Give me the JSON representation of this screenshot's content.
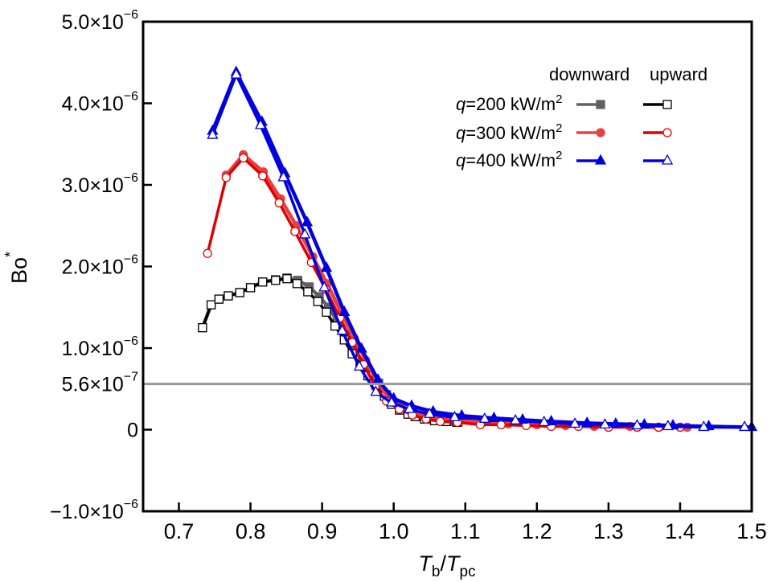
{
  "chart_data": {
    "type": "line",
    "title": "",
    "xlabel": {
      "main": "T",
      "sub1": "b",
      "slash": "/",
      "main2": "T",
      "sub2": "pc"
    },
    "ylabel": {
      "main": "Bo",
      "sup": "*"
    },
    "xlim": [
      0.65,
      1.5
    ],
    "ylim": [
      -1e-06,
      5e-06
    ],
    "x_ticks": [
      0.7,
      0.8,
      0.9,
      1.0,
      1.1,
      1.2,
      1.3,
      1.4,
      1.5
    ],
    "x_tick_labels": [
      "0.7",
      "0.8",
      "0.9",
      "1.0",
      "1.1",
      "1.2",
      "1.3",
      "1.4",
      "1.5"
    ],
    "y_ticks": [
      {
        "value": -1e-06,
        "mant": "−1.0×10",
        "exp": "−6"
      },
      {
        "value": 0,
        "mant": "0",
        "exp": ""
      },
      {
        "value": 5.6e-07,
        "mant": "5.6×10",
        "exp": "−7"
      },
      {
        "value": 1e-06,
        "mant": "1.0×10",
        "exp": "−6"
      },
      {
        "value": 2e-06,
        "mant": "2.0×10",
        "exp": "−6"
      },
      {
        "value": 3e-06,
        "mant": "3.0×10",
        "exp": "−6"
      },
      {
        "value": 4e-06,
        "mant": "4.0×10",
        "exp": "−6"
      },
      {
        "value": 5e-06,
        "mant": "5.0×10",
        "exp": "−6"
      }
    ],
    "reference_line": {
      "y": 5.6e-07,
      "color": "#999999"
    },
    "legend": {
      "placement": "top-right",
      "column_headers": [
        "downward",
        "upward"
      ],
      "rows": [
        {
          "q_label": "q",
          "rest": "=200 kW/m",
          "sup": "2"
        },
        {
          "q_label": "q",
          "rest": "=300 kW/m",
          "sup": "2"
        },
        {
          "q_label": "q",
          "rest": "=400 kW/m",
          "sup": "2"
        }
      ]
    },
    "y_unit_scale": 1e-06,
    "series": [
      {
        "name": "q=200 kW/m2 downward",
        "color": "#606060",
        "marker": "square-filled",
        "x": [
          0.733,
          0.745,
          0.756,
          0.769,
          0.785,
          0.8,
          0.817,
          0.835,
          0.851,
          0.866,
          0.882,
          0.896,
          0.909,
          0.921,
          0.933,
          0.945,
          0.956,
          0.967,
          0.979,
          0.99,
          1.0,
          1.011,
          1.022,
          1.033,
          1.046,
          1.06,
          1.076,
          1.09
        ],
        "y": [
          1.25,
          1.53,
          1.6,
          1.64,
          1.68,
          1.74,
          1.81,
          1.84,
          1.86,
          1.83,
          1.75,
          1.63,
          1.5,
          1.34,
          1.16,
          0.99,
          0.83,
          0.69,
          0.57,
          0.43,
          0.33,
          0.25,
          0.2,
          0.16,
          0.13,
          0.11,
          0.1,
          0.09
        ]
      },
      {
        "name": "q=200 kW/m2 upward",
        "color": "#000000",
        "marker": "square-open",
        "x": [
          0.733,
          0.745,
          0.756,
          0.769,
          0.785,
          0.8,
          0.817,
          0.835,
          0.851,
          0.865,
          0.88,
          0.894,
          0.906,
          0.918,
          0.931,
          0.942,
          0.953,
          0.964,
          0.976,
          0.987,
          0.997,
          1.008,
          1.02,
          1.03,
          1.043,
          1.057,
          1.073,
          1.088
        ],
        "y": [
          1.25,
          1.53,
          1.6,
          1.64,
          1.68,
          1.74,
          1.81,
          1.83,
          1.85,
          1.79,
          1.69,
          1.57,
          1.44,
          1.27,
          1.1,
          0.93,
          0.79,
          0.66,
          0.55,
          0.41,
          0.31,
          0.24,
          0.19,
          0.16,
          0.13,
          0.11,
          0.1,
          0.09
        ]
      },
      {
        "name": "q=300 kW/m2 downward",
        "color": "#e84040",
        "marker": "circle-filled",
        "x": [
          0.766,
          0.79,
          0.818,
          0.842,
          0.864,
          0.887,
          0.907,
          0.927,
          0.945,
          0.961,
          0.977,
          0.993,
          1.011,
          1.029,
          1.048,
          1.068,
          1.092,
          1.124,
          1.16,
          1.2,
          1.24,
          1.28,
          1.33,
          1.37,
          1.41
        ],
        "y": [
          3.12,
          3.37,
          3.16,
          2.83,
          2.5,
          2.12,
          1.79,
          1.43,
          1.12,
          0.85,
          0.58,
          0.39,
          0.28,
          0.21,
          0.16,
          0.13,
          0.11,
          0.09,
          0.07,
          0.06,
          0.05,
          0.04,
          0.04,
          0.03,
          0.03
        ]
      },
      {
        "name": "q=300 kW/m2 upward",
        "color": "#e00000",
        "marker": "circle-open",
        "x": [
          0.74,
          0.766,
          0.79,
          0.817,
          0.84,
          0.862,
          0.885,
          0.905,
          0.925,
          0.942,
          0.958,
          0.974,
          0.99,
          1.008,
          1.026,
          1.045,
          1.065,
          1.089,
          1.121,
          1.15,
          1.185,
          1.22,
          1.258,
          1.3,
          1.34,
          1.37,
          1.4
        ],
        "y": [
          2.16,
          3.09,
          3.33,
          3.11,
          2.78,
          2.43,
          2.05,
          1.72,
          1.37,
          1.07,
          0.8,
          0.53,
          0.35,
          0.25,
          0.18,
          0.13,
          0.1,
          0.09,
          0.06,
          0.06,
          0.05,
          0.04,
          0.04,
          0.03,
          0.03,
          0.03,
          0.03
        ]
      },
      {
        "name": "q=400 kW/m2 downward",
        "color": "#0000e0",
        "marker": "triangle-filled",
        "x": [
          0.747,
          0.78,
          0.816,
          0.848,
          0.879,
          0.906,
          0.931,
          0.955,
          0.978,
          1.0,
          1.025,
          1.055,
          1.095,
          1.14,
          1.18,
          1.22,
          1.27,
          1.31,
          1.35,
          1.39,
          1.44,
          1.5
        ],
        "y": [
          3.66,
          4.38,
          3.77,
          3.14,
          2.54,
          1.98,
          1.44,
          0.99,
          0.61,
          0.38,
          0.29,
          0.22,
          0.17,
          0.14,
          0.12,
          0.1,
          0.08,
          0.07,
          0.06,
          0.05,
          0.04,
          0.03
        ]
      },
      {
        "name": "q=400 kW/m2 upward",
        "color": "#0000e0",
        "marker": "triangle-open",
        "x": [
          0.747,
          0.78,
          0.814,
          0.846,
          0.876,
          0.903,
          0.928,
          0.952,
          0.975,
          0.997,
          1.022,
          1.05,
          1.085,
          1.127,
          1.17,
          1.21,
          1.253,
          1.295,
          1.34,
          1.383,
          1.433,
          1.49
        ],
        "y": [
          3.61,
          4.35,
          3.73,
          3.09,
          2.39,
          1.74,
          1.21,
          0.77,
          0.46,
          0.33,
          0.25,
          0.19,
          0.15,
          0.13,
          0.11,
          0.09,
          0.07,
          0.06,
          0.05,
          0.04,
          0.03,
          0.03
        ]
      }
    ]
  }
}
